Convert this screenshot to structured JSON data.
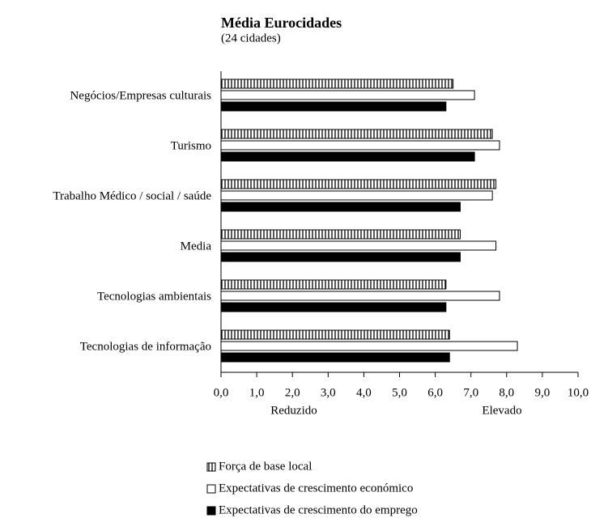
{
  "chart_data": {
    "type": "hbar",
    "title": "Média Eurocidades",
    "subtitle": "(24 cidades)",
    "categories": [
      "Negócios/Empresas culturais",
      "Turismo",
      "Trabalho Médico / social / saúde",
      "Media",
      "Tecnologias ambientais",
      "Tecnologias de informação"
    ],
    "series": [
      {
        "name": "Força de base local",
        "color": "#ffffff",
        "hatch": "vertical",
        "values": [
          6.5,
          7.6,
          7.7,
          6.7,
          6.3,
          6.4
        ]
      },
      {
        "name": "Expectativas de crescimento económico",
        "color": "#ffffff",
        "values": [
          7.1,
          7.8,
          7.6,
          7.7,
          7.8,
          8.3
        ]
      },
      {
        "name": "Expectativas de crescimento do emprego",
        "color": "#000000",
        "values": [
          6.3,
          7.1,
          6.7,
          6.7,
          6.3,
          6.4
        ]
      }
    ],
    "xlim": [
      0,
      10
    ],
    "xticks": [
      {
        "value": 0,
        "label": "0,0"
      },
      {
        "value": 1,
        "label": "1,0"
      },
      {
        "value": 2,
        "label": "2,0"
      },
      {
        "value": 3,
        "label": "3,0"
      },
      {
        "value": 4,
        "label": "4,0"
      },
      {
        "value": 5,
        "label": "5,0"
      },
      {
        "value": 6,
        "label": "6,0"
      },
      {
        "value": 7,
        "label": "7,0"
      },
      {
        "value": 8,
        "label": "8,0"
      },
      {
        "value": 9,
        "label": "9,0"
      },
      {
        "value": 10,
        "label": "10,0"
      }
    ],
    "annotations": [
      "Reduzido",
      "Elevado"
    ],
    "legend": "bottom"
  }
}
